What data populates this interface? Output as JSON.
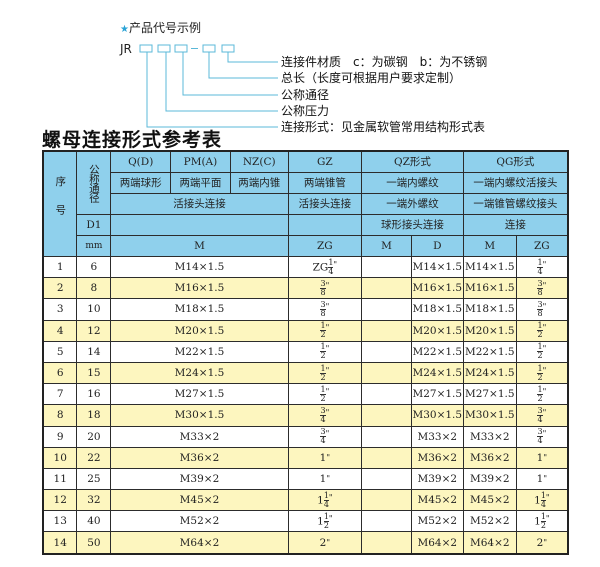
{
  "example": {
    "heading": "产品代号示例",
    "prefix": "JR",
    "dash": "-",
    "labels": [
      "连接件材质　c：为碳钢　b：为不锈钢",
      "总长（长度可根据用户要求定制）",
      "公称通径",
      "公称压力",
      "连接形式：见金属软管常用结构形式表"
    ]
  },
  "accent": "#2aa3d6",
  "header_bg": "#8fd0ec",
  "alt_row_bg": "#fdf6bf",
  "title": "螺母连接形式参考表",
  "table": {
    "h_no": "序号",
    "h_dn": "公称通径",
    "r1": [
      "Q(D)",
      "PM(A)",
      "NZ(C)",
      "GZ",
      "QZ形式",
      "QG形式"
    ],
    "r2": [
      "两端球形",
      "两端平面",
      "两端内锥",
      "两端锥管",
      "一端内螺纹",
      "一端内螺纹活接头"
    ],
    "r3": [
      "活接头连接",
      "活接头连接",
      "一端外螺纹",
      "一端锥管螺纹接头"
    ],
    "r4": [
      "D1",
      "球形接头连接",
      "连接"
    ],
    "r5": [
      "mm",
      "M",
      "ZG",
      "M",
      "D",
      "M",
      "ZG"
    ],
    "rows": [
      {
        "no": "1",
        "dn": "6",
        "m": "M14×1.5",
        "zg": {
          "w": "ZG",
          "n": "1",
          "d": "4"
        },
        "d": "M14×1.5",
        "qm": "M14×1.5",
        "qzg": {
          "w": "",
          "n": "1",
          "d": "4"
        }
      },
      {
        "no": "2",
        "dn": "8",
        "m": "M16×1.5",
        "zg": {
          "w": "",
          "n": "3",
          "d": "8"
        },
        "d": "M16×1.5",
        "qm": "M16×1.5",
        "qzg": {
          "w": "",
          "n": "3",
          "d": "8"
        }
      },
      {
        "no": "3",
        "dn": "10",
        "m": "M18×1.5",
        "zg": {
          "w": "",
          "n": "3",
          "d": "8"
        },
        "d": "M18×1.5",
        "qm": "M18×1.5",
        "qzg": {
          "w": "",
          "n": "3",
          "d": "8"
        }
      },
      {
        "no": "4",
        "dn": "12",
        "m": "M20×1.5",
        "zg": {
          "w": "",
          "n": "1",
          "d": "2"
        },
        "d": "M20×1.5",
        "qm": "M20×1.5",
        "qzg": {
          "w": "",
          "n": "1",
          "d": "2"
        }
      },
      {
        "no": "5",
        "dn": "14",
        "m": "M22×1.5",
        "zg": {
          "w": "",
          "n": "1",
          "d": "2"
        },
        "d": "M22×1.5",
        "qm": "M22×1.5",
        "qzg": {
          "w": "",
          "n": "1",
          "d": "2"
        }
      },
      {
        "no": "6",
        "dn": "15",
        "m": "M24×1.5",
        "zg": {
          "w": "",
          "n": "1",
          "d": "2"
        },
        "d": "M24×1.5",
        "qm": "M24×1.5",
        "qzg": {
          "w": "",
          "n": "1",
          "d": "2"
        }
      },
      {
        "no": "7",
        "dn": "16",
        "m": "M27×1.5",
        "zg": {
          "w": "",
          "n": "1",
          "d": "2"
        },
        "d": "M27×1.5",
        "qm": "M27×1.5",
        "qzg": {
          "w": "",
          "n": "1",
          "d": "2"
        }
      },
      {
        "no": "8",
        "dn": "18",
        "m": "M30×1.5",
        "zg": {
          "w": "",
          "n": "3",
          "d": "4"
        },
        "d": "M30×1.5",
        "qm": "M30×1.5",
        "qzg": {
          "w": "",
          "n": "3",
          "d": "4"
        }
      },
      {
        "no": "9",
        "dn": "20",
        "m": "M33×2",
        "zg": {
          "w": "",
          "n": "3",
          "d": "4"
        },
        "d": "M33×2",
        "qm": "M33×2",
        "qzg": {
          "w": "",
          "n": "3",
          "d": "4"
        }
      },
      {
        "no": "10",
        "dn": "22",
        "m": "M36×2",
        "zg": {
          "w": "1"
        },
        "d": "M36×2",
        "qm": "M36×2",
        "qzg": {
          "w": "1"
        }
      },
      {
        "no": "11",
        "dn": "25",
        "m": "M39×2",
        "zg": {
          "w": "1"
        },
        "d": "M39×2",
        "qm": "M39×2",
        "qzg": {
          "w": "1"
        }
      },
      {
        "no": "12",
        "dn": "32",
        "m": "M45×2",
        "zg": {
          "w": "1",
          "n": "1",
          "d": "4"
        },
        "d": "M45×2",
        "qm": "M45×2",
        "qzg": {
          "w": "1",
          "n": "1",
          "d": "4"
        }
      },
      {
        "no": "13",
        "dn": "40",
        "m": "M52×2",
        "zg": {
          "w": "1",
          "n": "1",
          "d": "2"
        },
        "d": "M52×2",
        "qm": "M52×2",
        "qzg": {
          "w": "1",
          "n": "1",
          "d": "2"
        }
      },
      {
        "no": "14",
        "dn": "50",
        "m": "M64×2",
        "zg": {
          "w": "2"
        },
        "d": "M64×2",
        "qm": "M64×2",
        "qzg": {
          "w": "2"
        }
      }
    ]
  }
}
